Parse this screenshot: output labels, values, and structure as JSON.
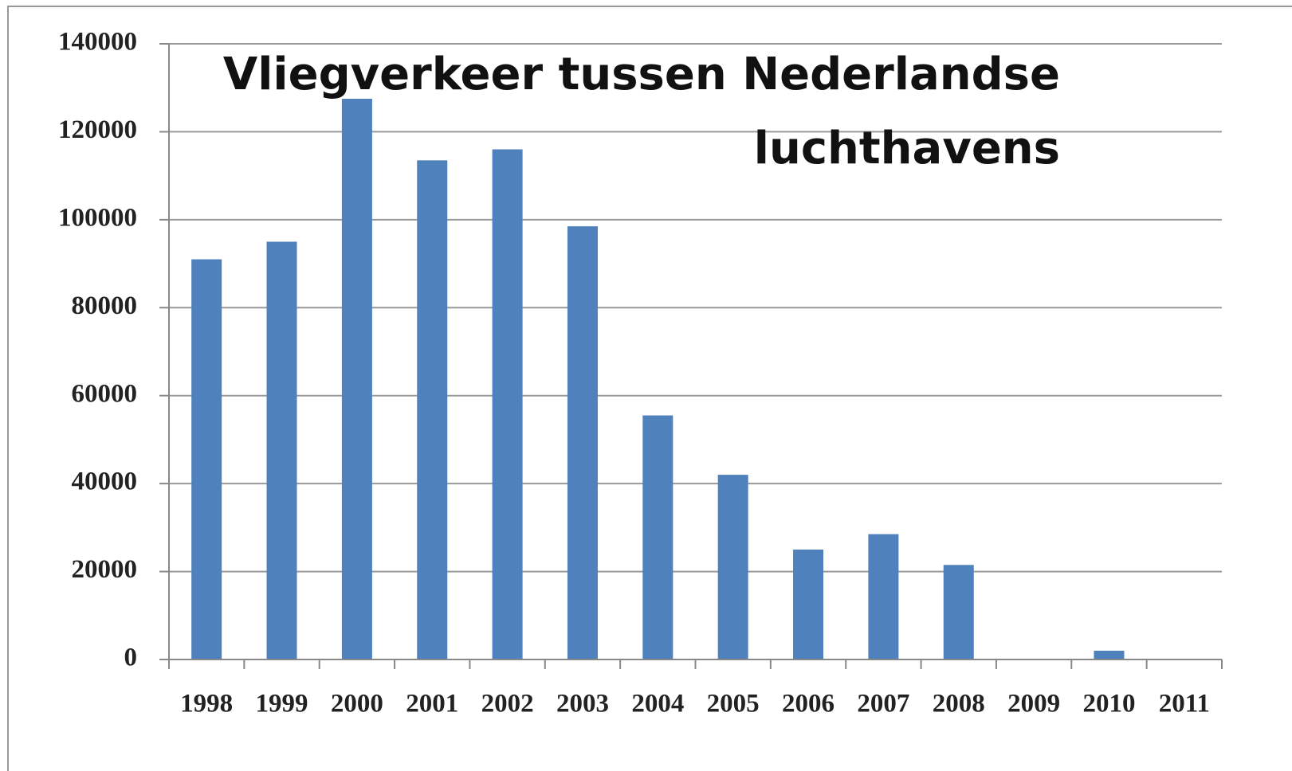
{
  "chart_data": {
    "type": "bar",
    "title": [
      "Vliegverkeer tussen Nederlandse",
      "luchthavens"
    ],
    "categories": [
      "1998",
      "1999",
      "2000",
      "2001",
      "2002",
      "2003",
      "2004",
      "2005",
      "2006",
      "2007",
      "2008",
      "2009",
      "2010",
      "2011"
    ],
    "values": [
      91000,
      95000,
      127500,
      113500,
      116000,
      98500,
      55500,
      42000,
      25000,
      28500,
      21500,
      0,
      2000,
      0
    ],
    "color": "#4f81bd",
    "ylim": [
      0,
      140000
    ],
    "yticks": [
      0,
      20000,
      40000,
      60000,
      80000,
      100000,
      120000,
      140000
    ],
    "grid": true
  }
}
